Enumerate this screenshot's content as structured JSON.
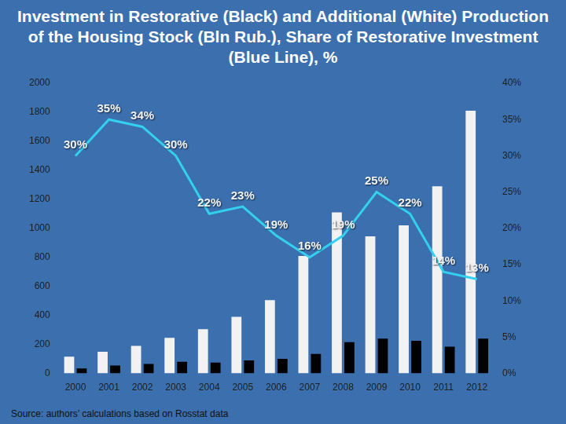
{
  "chart_data": {
    "type": "bar",
    "title": "Investment in Restorative (Black) and Additional (White) Production of the Housing Stock (Bln Rub.), Share of Restorative Investment (Blue Line), %",
    "categories": [
      "2000",
      "2001",
      "2002",
      "2003",
      "2004",
      "2005",
      "2006",
      "2007",
      "2008",
      "2009",
      "2010",
      "2011",
      "2012"
    ],
    "series": [
      {
        "color": "#f2f2f2",
        "values": [
          115,
          150,
          190,
          245,
          305,
          390,
          505,
          810,
          1110,
          945,
          1020,
          1290,
          1810
        ]
      },
      {
        "color": "#000000",
        "values": [
          35,
          55,
          65,
          80,
          75,
          90,
          100,
          135,
          215,
          240,
          225,
          185,
          240
        ]
      },
      {
        "type": "line",
        "color": "#33d0f0",
        "axis": "y2",
        "marker": "none",
        "data_labels": true,
        "values": [
          30,
          35,
          34,
          30,
          22,
          23,
          19,
          16,
          19,
          25,
          22,
          14,
          13
        ],
        "value_labels": [
          "30%",
          "35%",
          "34%",
          "30%",
          "22%",
          "23%",
          "19%",
          "16%",
          "19%",
          "25%",
          "22%",
          "14%",
          "13%"
        ]
      }
    ],
    "ylim": [
      0,
      2000
    ],
    "yticks": [
      0,
      200,
      400,
      600,
      800,
      1000,
      1200,
      1400,
      1600,
      1800,
      2000
    ],
    "y2lim": [
      0,
      40
    ],
    "y2ticks": [
      {
        "value": 0,
        "label": "0%"
      },
      {
        "value": 5,
        "label": "5%"
      },
      {
        "value": 10,
        "label": "10%"
      },
      {
        "value": 15,
        "label": "15%"
      },
      {
        "value": 20,
        "label": "20%"
      },
      {
        "value": 25,
        "label": "25%"
      },
      {
        "value": 30,
        "label": "30%"
      },
      {
        "value": 35,
        "label": "35%"
      },
      {
        "value": 40,
        "label": "40%"
      }
    ],
    "grid": false,
    "annotations": [
      "Source: authors’ calculations based on Rosstat data"
    ]
  }
}
